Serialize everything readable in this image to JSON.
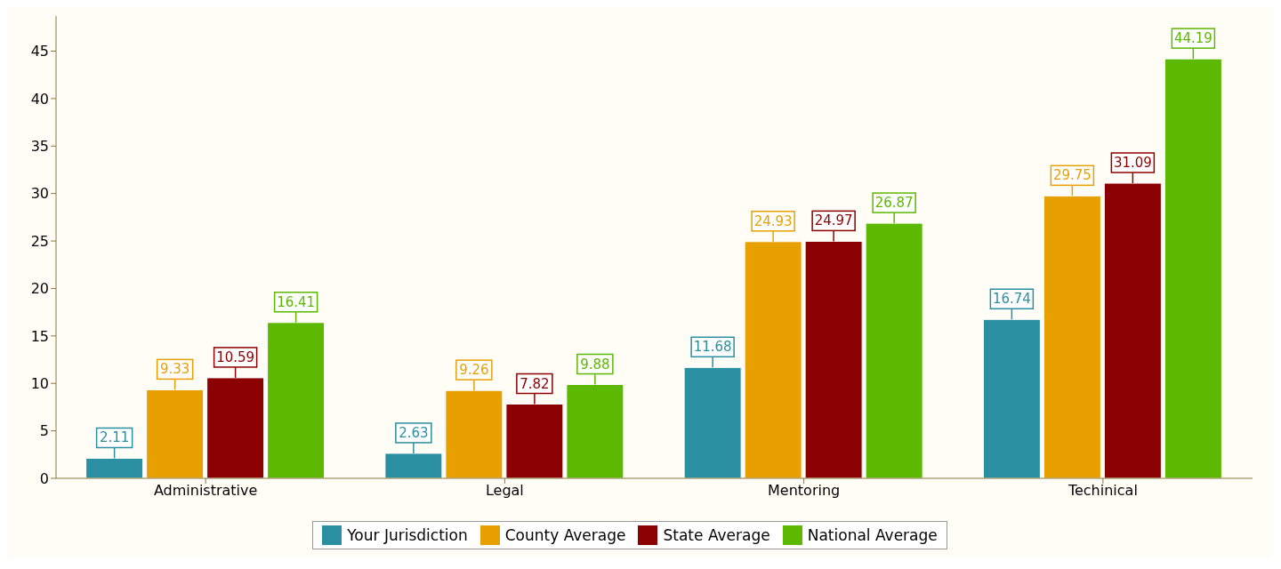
{
  "chart_data": {
    "type": "bar",
    "categories": [
      "Administrative",
      "Legal",
      "Mentoring",
      "Techinical"
    ],
    "series": [
      {
        "name": "Your Jurisdiction",
        "color": "#2a8fa0",
        "values": [
          2.11,
          2.63,
          11.68,
          16.74
        ]
      },
      {
        "name": "County Average",
        "color": "#e8a000",
        "values": [
          9.33,
          9.26,
          24.93,
          29.75
        ]
      },
      {
        "name": "State Average",
        "color": "#8b0000",
        "values": [
          10.59,
          7.82,
          24.97,
          31.09
        ]
      },
      {
        "name": "National Average",
        "color": "#5cb800",
        "values": [
          16.41,
          9.88,
          26.87,
          44.19
        ]
      }
    ],
    "ylim": [
      0,
      48.7
    ],
    "yticks": [
      0,
      5,
      10,
      15,
      20,
      25,
      30,
      35,
      40,
      45
    ],
    "data_labels": true,
    "legend": "bottom"
  }
}
